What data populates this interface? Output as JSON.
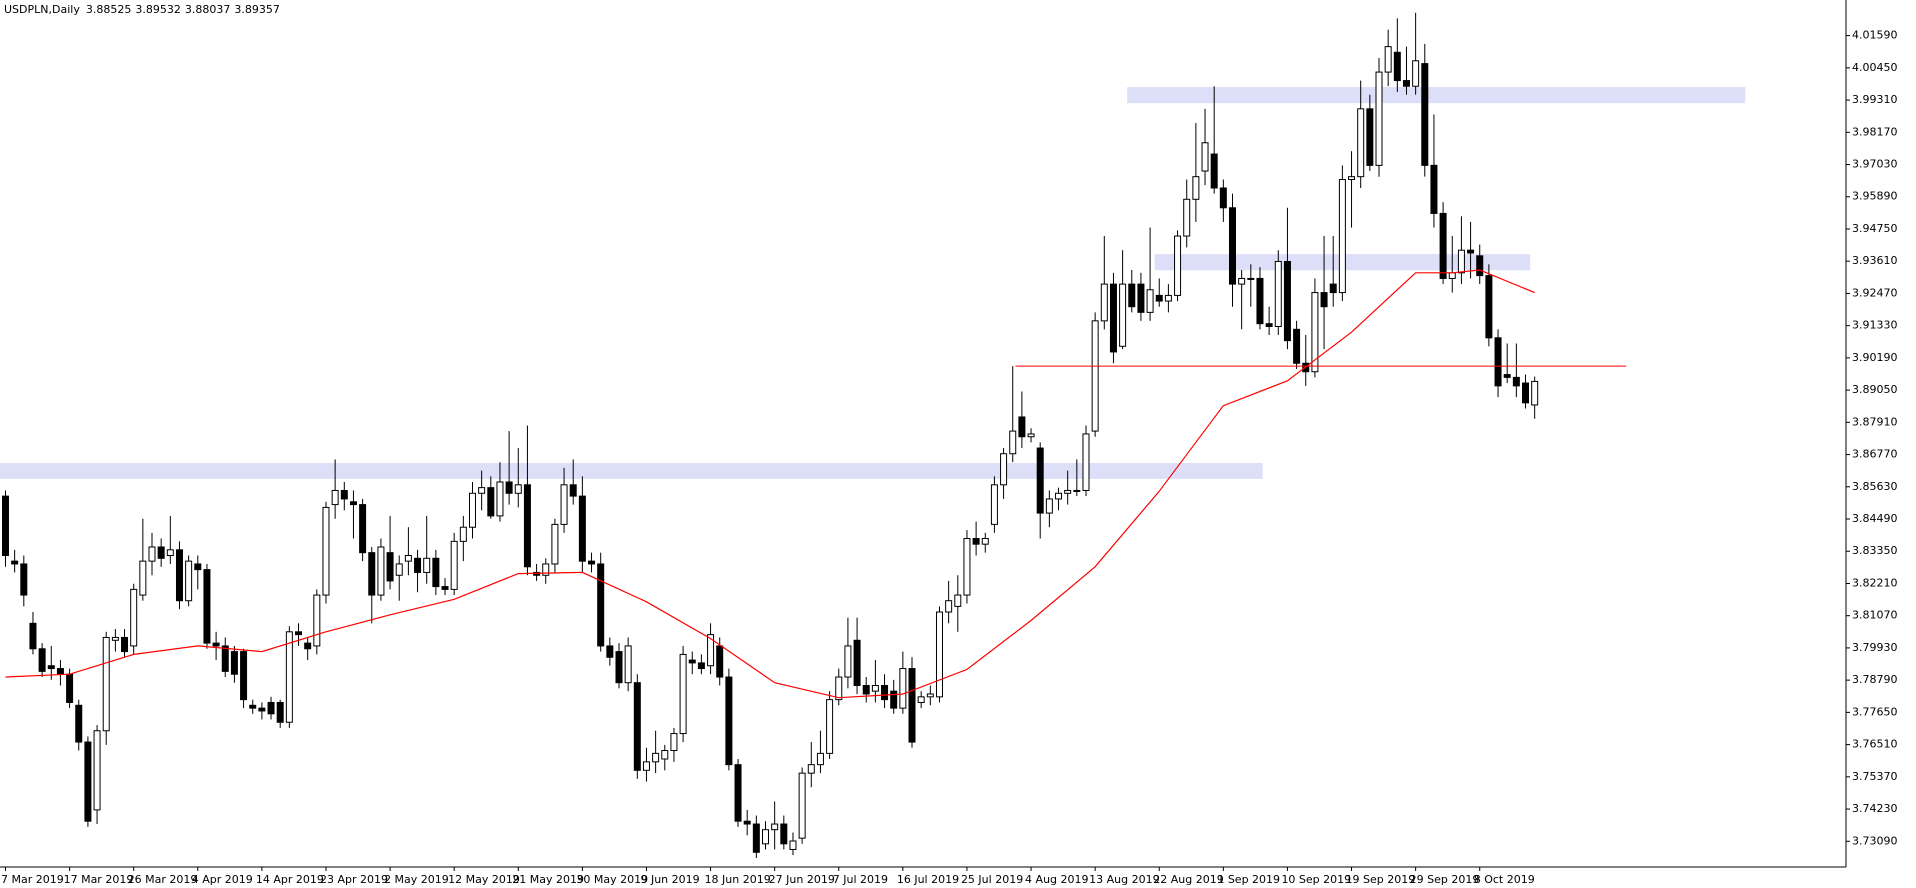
{
  "chart_data": {
    "type": "candlestick",
    "title": "USDPLN,Daily",
    "categories": [
      "7 Mar 2019",
      null,
      null,
      null,
      null,
      null,
      null,
      "17 Mar 2019",
      null,
      null,
      null,
      null,
      null,
      null,
      "26 Mar 2019",
      null,
      null,
      null,
      null,
      null,
      null,
      "4 Apr 2019",
      null,
      null,
      null,
      null,
      null,
      null,
      "14 Apr 2019",
      null,
      null,
      null,
      null,
      null,
      null,
      "23 Apr 2019",
      null,
      null,
      null,
      null,
      null,
      null,
      "2 May 2019",
      null,
      null,
      null,
      null,
      null,
      null,
      "12 May 2019",
      null,
      null,
      null,
      null,
      null,
      null,
      "21 May 2019",
      null,
      null,
      null,
      null,
      null,
      null,
      "30 May 2019",
      null,
      null,
      null,
      null,
      null,
      null,
      "9 Jun 2019",
      null,
      null,
      null,
      null,
      null,
      null,
      "18 Jun 2019",
      null,
      null,
      null,
      null,
      null,
      null,
      "27 Jun 2019",
      null,
      null,
      null,
      null,
      null,
      null,
      "7 Jul 2019",
      null,
      null,
      null,
      null,
      null,
      null,
      "16 Jul 2019",
      null,
      null,
      null,
      null,
      null,
      null,
      "25 Jul 2019",
      null,
      null,
      null,
      null,
      null,
      null,
      "4 Aug 2019",
      null,
      null,
      null,
      null,
      null,
      null,
      "13 Aug 2019",
      null,
      null,
      null,
      null,
      null,
      null,
      "22 Aug 2019",
      null,
      null,
      null,
      null,
      null,
      null,
      "1 Sep 2019",
      null,
      null,
      null,
      null,
      null,
      null,
      "10 Sep 2019",
      null,
      null,
      null,
      null,
      null,
      null,
      "19 Sep 2019",
      null,
      null,
      null,
      null,
      null,
      null,
      "29 Sep 2019",
      null,
      null,
      null,
      null,
      null,
      null,
      "8 Oct 2019",
      null,
      null,
      null,
      null,
      null,
      null
    ],
    "open": [
      3.853,
      3.83,
      3.829,
      3.808,
      3.799,
      3.793,
      3.792,
      3.79,
      3.779,
      3.766,
      3.742,
      3.77,
      3.802,
      3.803,
      3.8,
      3.818,
      3.83,
      3.835,
      3.832,
      3.834,
      3.816,
      3.829,
      3.827,
      3.801,
      3.8,
      3.798,
      3.798,
      3.779,
      3.778,
      3.78,
      3.78,
      3.773,
      3.805,
      3.801,
      3.8,
      3.818,
      3.85,
      3.855,
      3.851,
      3.85,
      3.833,
      3.818,
      3.833,
      3.825,
      3.83,
      3.831,
      3.826,
      3.831,
      3.821,
      3.82,
      3.837,
      3.842,
      3.854,
      3.856,
      3.846,
      3.858,
      3.854,
      3.857,
      3.826,
      3.825,
      3.829,
      3.843,
      3.857,
      3.853,
      3.83,
      3.829,
      3.8,
      3.798,
      3.787,
      3.787,
      3.756,
      3.759,
      3.76,
      3.763,
      3.769,
      3.795,
      3.794,
      3.793,
      3.8,
      3.789,
      3.758,
      3.738,
      3.737,
      3.73,
      3.735,
      3.737,
      3.728,
      3.732,
      3.755,
      3.758,
      3.762,
      3.781,
      3.789,
      3.802,
      3.786,
      3.784,
      3.786,
      3.784,
      3.778,
      3.792,
      3.78,
      3.782,
      3.782,
      3.812,
      3.814,
      3.818,
      3.838,
      3.836,
      3.843,
      3.857,
      3.868,
      3.881,
      3.874,
      3.87,
      3.847,
      3.852,
      3.854,
      3.855,
      3.855,
      3.876,
      3.915,
      3.928,
      3.906,
      3.928,
      3.928,
      3.918,
      3.924,
      3.922,
      3.924,
      3.945,
      3.958,
      3.968,
      3.974,
      3.962,
      3.955,
      3.928,
      3.93,
      3.93,
      3.914,
      3.913,
      3.936,
      3.912,
      3.9,
      3.897,
      3.925,
      3.928,
      3.925,
      3.965,
      3.966,
      3.99,
      3.97,
      4.003,
      4.01,
      4.0,
      3.998,
      4.006,
      3.97,
      3.953,
      3.93,
      3.932,
      3.94,
      3.938,
      3.931,
      3.909,
      3.896,
      3.895,
      3.893,
      3.88525
    ],
    "high": [
      3.855,
      3.834,
      3.832,
      3.812,
      3.801,
      3.8,
      3.795,
      3.792,
      3.781,
      3.768,
      3.772,
      3.805,
      3.806,
      3.806,
      3.822,
      3.845,
      3.84,
      3.838,
      3.846,
      3.837,
      3.832,
      3.832,
      3.829,
      3.805,
      3.803,
      3.8,
      3.799,
      3.781,
      3.78,
      3.782,
      3.781,
      3.807,
      3.808,
      3.803,
      3.82,
      3.851,
      3.866,
      3.858,
      3.855,
      3.852,
      3.835,
      3.838,
      3.846,
      3.832,
      3.842,
      3.834,
      3.846,
      3.834,
      3.824,
      3.84,
      3.846,
      3.858,
      3.862,
      3.86,
      3.865,
      3.876,
      3.87,
      3.878,
      3.829,
      3.831,
      3.845,
      3.863,
      3.866,
      3.86,
      3.833,
      3.833,
      3.803,
      3.801,
      3.803,
      3.79,
      3.764,
      3.77,
      3.765,
      3.771,
      3.8,
      3.798,
      3.797,
      3.808,
      3.803,
      3.792,
      3.76,
      3.742,
      3.74,
      3.738,
      3.745,
      3.74,
      3.734,
      3.757,
      3.766,
      3.77,
      3.784,
      3.792,
      3.81,
      3.81,
      3.789,
      3.795,
      3.79,
      3.788,
      3.798,
      3.796,
      3.784,
      3.786,
      3.814,
      3.823,
      3.825,
      3.841,
      3.844,
      3.84,
      3.86,
      3.87,
      3.899,
      3.89,
      3.877,
      3.872,
      3.855,
      3.856,
      3.862,
      3.866,
      3.878,
      3.918,
      3.945,
      3.932,
      3.94,
      3.933,
      3.932,
      3.948,
      3.93,
      3.928,
      3.947,
      3.965,
      3.985,
      3.99,
      3.998,
      3.965,
      3.96,
      3.933,
      3.935,
      3.934,
      3.92,
      3.94,
      3.955,
      3.915,
      3.91,
      3.93,
      3.945,
      3.945,
      3.97,
      3.975,
      4.0,
      3.995,
      4.008,
      4.018,
      4.022,
      4.012,
      4.024,
      4.013,
      3.988,
      3.957,
      3.945,
      3.952,
      3.95,
      3.942,
      3.935,
      3.912,
      3.907,
      3.907,
      3.896,
      3.89532
    ],
    "low": [
      3.828,
      3.826,
      3.814,
      3.797,
      3.789,
      3.788,
      3.786,
      3.778,
      3.763,
      3.736,
      3.737,
      3.765,
      3.798,
      3.796,
      3.797,
      3.816,
      3.825,
      3.828,
      3.829,
      3.813,
      3.814,
      3.82,
      3.799,
      3.795,
      3.789,
      3.787,
      3.778,
      3.776,
      3.774,
      3.774,
      3.771,
      3.771,
      3.8,
      3.795,
      3.797,
      3.815,
      3.845,
      3.848,
      3.838,
      3.83,
      3.808,
      3.816,
      3.82,
      3.816,
      3.825,
      3.819,
      3.822,
      3.818,
      3.818,
      3.818,
      3.83,
      3.838,
      3.848,
      3.845,
      3.844,
      3.85,
      3.849,
      3.825,
      3.823,
      3.822,
      3.826,
      3.84,
      3.85,
      3.826,
      3.826,
      3.798,
      3.793,
      3.785,
      3.784,
      3.753,
      3.752,
      3.755,
      3.756,
      3.759,
      3.766,
      3.79,
      3.79,
      3.79,
      3.786,
      3.756,
      3.736,
      3.733,
      3.725,
      3.728,
      3.728,
      3.728,
      3.726,
      3.73,
      3.75,
      3.755,
      3.76,
      3.779,
      3.785,
      3.783,
      3.78,
      3.78,
      3.778,
      3.776,
      3.776,
      3.764,
      3.778,
      3.779,
      3.78,
      3.808,
      3.805,
      3.815,
      3.832,
      3.833,
      3.84,
      3.852,
      3.865,
      3.87,
      3.872,
      3.838,
      3.842,
      3.848,
      3.85,
      3.853,
      3.853,
      3.874,
      3.912,
      3.9,
      3.905,
      3.918,
      3.915,
      3.915,
      3.92,
      3.918,
      3.922,
      3.941,
      3.95,
      3.963,
      3.96,
      3.95,
      3.92,
      3.912,
      3.92,
      3.912,
      3.91,
      3.91,
      3.905,
      3.898,
      3.892,
      3.895,
      3.905,
      3.92,
      3.922,
      3.948,
      3.962,
      3.968,
      3.966,
      3.998,
      3.996,
      3.995,
      3.995,
      3.966,
      3.948,
      3.928,
      3.925,
      3.928,
      3.93,
      3.928,
      3.906,
      3.888,
      3.893,
      3.888,
      3.884,
      3.88037
    ],
    "close": [
      3.832,
      3.829,
      3.818,
      3.799,
      3.791,
      3.792,
      3.79,
      3.78,
      3.766,
      3.738,
      3.77,
      3.803,
      3.803,
      3.798,
      3.82,
      3.83,
      3.835,
      3.831,
      3.834,
      3.816,
      3.83,
      3.827,
      3.801,
      3.8,
      3.791,
      3.79,
      3.781,
      3.778,
      3.777,
      3.776,
      3.773,
      3.805,
      3.804,
      3.799,
      3.818,
      3.849,
      3.855,
      3.852,
      3.85,
      3.833,
      3.818,
      3.835,
      3.823,
      3.829,
      3.832,
      3.826,
      3.831,
      3.821,
      3.82,
      3.837,
      3.842,
      3.854,
      3.856,
      3.846,
      3.858,
      3.854,
      3.857,
      3.828,
      3.825,
      3.829,
      3.843,
      3.857,
      3.853,
      3.83,
      3.829,
      3.8,
      3.796,
      3.787,
      3.8,
      3.756,
      3.759,
      3.762,
      3.763,
      3.769,
      3.797,
      3.794,
      3.792,
      3.804,
      3.789,
      3.758,
      3.738,
      3.737,
      3.727,
      3.735,
      3.737,
      3.73,
      3.731,
      3.755,
      3.758,
      3.762,
      3.781,
      3.789,
      3.8,
      3.786,
      3.783,
      3.786,
      3.781,
      3.778,
      3.792,
      3.766,
      3.782,
      3.783,
      3.812,
      3.816,
      3.818,
      3.838,
      3.836,
      3.838,
      3.857,
      3.868,
      3.876,
      3.874,
      3.875,
      3.847,
      3.852,
      3.854,
      3.855,
      3.855,
      3.875,
      3.915,
      3.928,
      3.904,
      3.928,
      3.92,
      3.918,
      3.926,
      3.922,
      3.924,
      3.945,
      3.958,
      3.966,
      3.978,
      3.962,
      3.955,
      3.928,
      3.93,
      3.93,
      3.914,
      3.913,
      3.936,
      3.908,
      3.9,
      3.897,
      3.925,
      3.92,
      3.925,
      3.965,
      3.966,
      3.99,
      3.97,
      4.003,
      4.012,
      4.0,
      3.998,
      4.007,
      3.97,
      3.953,
      3.93,
      3.932,
      3.94,
      3.939,
      3.931,
      3.909,
      3.892,
      3.895,
      3.892,
      3.886,
      3.89357
    ],
    "up_color": "#ffffff",
    "down_color": "#000000",
    "xlim": [
      -0.6,
      201
    ],
    "ylim": [
      3.7218,
      4.0285
    ],
    "yticks": [
      {
        "value": 4.0159,
        "label": "4.01590"
      },
      {
        "value": 4.0045,
        "label": "4.00450"
      },
      {
        "value": 3.9931,
        "label": "3.99310"
      },
      {
        "value": 3.9817,
        "label": "3.98170"
      },
      {
        "value": 3.9703,
        "label": "3.97030"
      },
      {
        "value": 3.9589,
        "label": "3.95890"
      },
      {
        "value": 3.9475,
        "label": "3.94750"
      },
      {
        "value": 3.9361,
        "label": "3.93610"
      },
      {
        "value": 3.9247,
        "label": "3.92470"
      },
      {
        "value": 3.9133,
        "label": "3.91330"
      },
      {
        "value": 3.9019,
        "label": "3.90190"
      },
      {
        "value": 3.8905,
        "label": "3.89050"
      },
      {
        "value": 3.8791,
        "label": "3.87910"
      },
      {
        "value": 3.8677,
        "label": "3.86770"
      },
      {
        "value": 3.8563,
        "label": "3.85630"
      },
      {
        "value": 3.8449,
        "label": "3.84490"
      },
      {
        "value": 3.8335,
        "label": "3.83350"
      },
      {
        "value": 3.8221,
        "label": "3.82210"
      },
      {
        "value": 3.8107,
        "label": "3.81070"
      },
      {
        "value": 3.7993,
        "label": "3.79930"
      },
      {
        "value": 3.7879,
        "label": "3.78790"
      },
      {
        "value": 3.7765,
        "label": "3.77650"
      },
      {
        "value": 3.7651,
        "label": "3.76510"
      },
      {
        "value": 3.7537,
        "label": "3.75370"
      },
      {
        "value": 3.7423,
        "label": "3.74230"
      },
      {
        "value": 3.7309,
        "label": "3.73090"
      }
    ],
    "moving_average": {
      "color": "#ff0000",
      "x": [
        0,
        7,
        14,
        21,
        28,
        35,
        42,
        49,
        56,
        63,
        70,
        77,
        84,
        91,
        98,
        105,
        112,
        119,
        126,
        133,
        140,
        147,
        154,
        158,
        161,
        167
      ],
      "values": [
        3.789,
        3.79,
        3.797,
        3.8,
        3.798,
        3.805,
        3.811,
        3.8165,
        3.8256,
        3.826,
        3.8156,
        3.8026,
        3.787,
        3.7817,
        3.783,
        3.7917,
        3.809,
        3.828,
        3.8547,
        3.885,
        3.8938,
        3.911,
        3.932,
        3.932,
        3.933,
        3.925
      ]
    },
    "zones": [
      {
        "color": "#dcdff7",
        "x": [
          122.5,
          190
        ],
        "y": [
          3.992,
          3.9977
        ]
      },
      {
        "color": "#dcdff7",
        "x": [
          125.5,
          166.5
        ],
        "y": [
          3.9329,
          3.9386
        ]
      },
      {
        "color": "#dcdff7",
        "x": [
          -0.6,
          137.3
        ],
        "y": [
          3.8591,
          3.8647
        ]
      }
    ],
    "levels": [
      {
        "color": "#ff0000",
        "x": [
          110.3,
          177
        ],
        "value": 3.899
      }
    ]
  }
}
